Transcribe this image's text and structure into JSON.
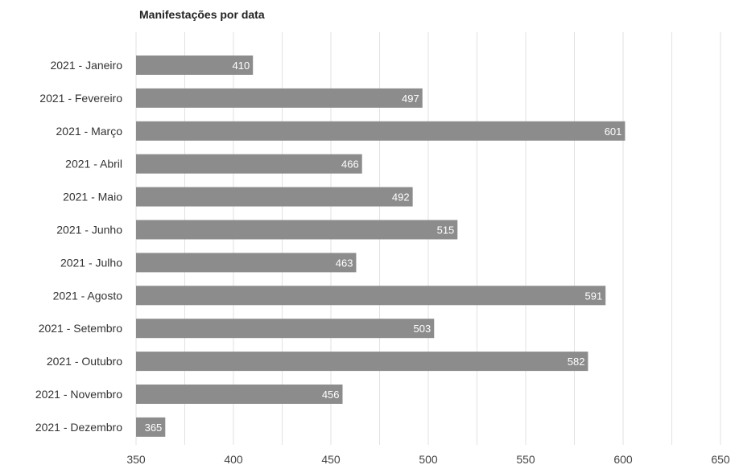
{
  "chart_data": {
    "type": "bar",
    "orientation": "horizontal",
    "title": "Manifestações por data",
    "xlabel": "",
    "ylabel": "",
    "categories": [
      "2021 - Janeiro",
      "2021 - Fevereiro",
      "2021 - Março",
      "2021 - Abril",
      "2021 - Maio",
      "2021 - Junho",
      "2021 - Julho",
      "2021 - Agosto",
      "2021 - Setembro",
      "2021 - Outubro",
      "2021 - Novembro",
      "2021 - Dezembro"
    ],
    "values": [
      410,
      497,
      601,
      466,
      492,
      515,
      463,
      591,
      503,
      582,
      456,
      365
    ],
    "xlim": [
      350,
      650
    ],
    "xticks": [
      350,
      400,
      450,
      500,
      550,
      600,
      650
    ],
    "grid": true,
    "legend": "none",
    "bar_color": "#8c8c8c",
    "grid_color": "#e2e2e2",
    "value_label_color": "#ffffff"
  }
}
